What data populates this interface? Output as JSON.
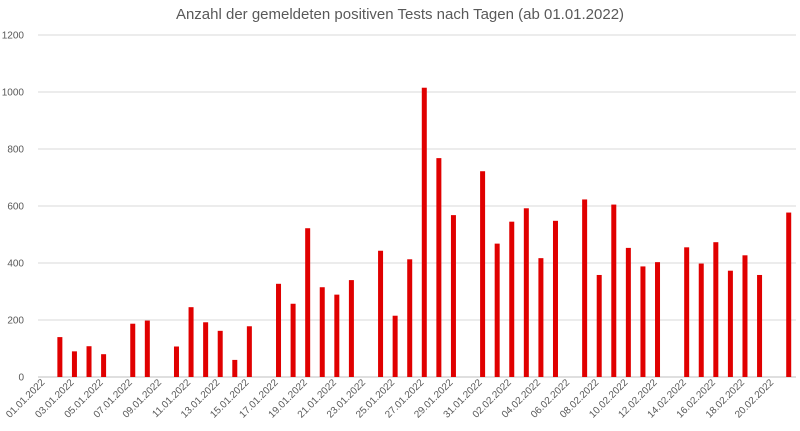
{
  "chart_data": {
    "type": "bar",
    "title": "Anzahl der gemeldeten positiven Tests nach Tagen (ab 01.01.2022)",
    "xlabel": "",
    "ylabel": "",
    "ylim": [
      0,
      1200
    ],
    "yticks": [
      0,
      200,
      400,
      600,
      800,
      1000,
      1200
    ],
    "grid": true,
    "bar_color": "#e00000",
    "categories": [
      "01.01.2022",
      "02.01.2022",
      "03.01.2022",
      "04.01.2022",
      "05.01.2022",
      "06.01.2022",
      "07.01.2022",
      "08.01.2022",
      "09.01.2022",
      "10.01.2022",
      "11.01.2022",
      "12.01.2022",
      "13.01.2022",
      "14.01.2022",
      "15.01.2022",
      "16.01.2022",
      "17.01.2022",
      "18.01.2022",
      "19.01.2022",
      "20.01.2022",
      "21.01.2022",
      "22.01.2022",
      "23.01.2022",
      "24.01.2022",
      "25.01.2022",
      "26.01.2022",
      "27.01.2022",
      "28.01.2022",
      "29.01.2022",
      "30.01.2022",
      "31.01.2022",
      "01.02.2022",
      "02.02.2022",
      "03.02.2022",
      "04.02.2022",
      "05.02.2022",
      "06.02.2022",
      "07.02.2022",
      "08.02.2022",
      "09.02.2022",
      "10.02.2022",
      "11.02.2022",
      "12.02.2022",
      "13.02.2022",
      "14.02.2022",
      "15.02.2022",
      "16.02.2022",
      "17.02.2022",
      "18.02.2022",
      "19.02.2022",
      "20.02.2022",
      "21.02.2022"
    ],
    "tick_labels": [
      "01.01.2022",
      "03.01.2022",
      "05.01.2022",
      "07.01.2022",
      "09.01.2022",
      "11.01.2022",
      "13.01.2022",
      "15.01.2022",
      "17.01.2022",
      "19.01.2022",
      "21.01.2022",
      "23.01.2022",
      "25.01.2022",
      "27.01.2022",
      "29.01.2022",
      "31.01.2022",
      "02.02.2022",
      "04.02.2022",
      "06.02.2022",
      "08.02.2022",
      "10.02.2022",
      "12.02.2022",
      "14.02.2022",
      "16.02.2022",
      "18.02.2022",
      "20.02.2022"
    ],
    "values": [
      0,
      140,
      90,
      108,
      80,
      0,
      187,
      198,
      0,
      107,
      245,
      192,
      162,
      60,
      178,
      0,
      327,
      257,
      522,
      315,
      289,
      340,
      0,
      443,
      215,
      413,
      1015,
      768,
      568,
      0,
      722,
      468,
      545,
      592,
      417,
      548,
      0,
      623,
      358,
      605,
      453,
      388,
      403,
      0,
      455,
      398,
      473,
      373,
      427,
      358,
      0,
      577
    ]
  }
}
